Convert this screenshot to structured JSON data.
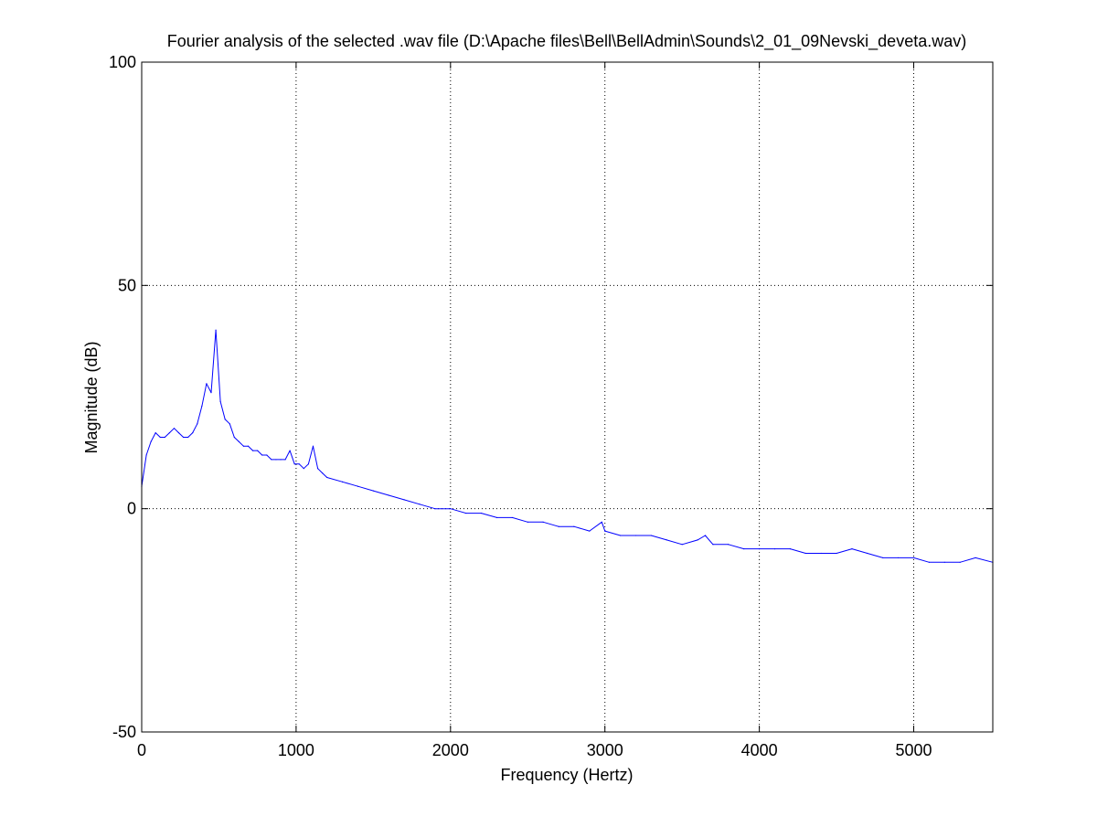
{
  "chart_data": {
    "type": "line",
    "title": "Fourier analysis of the selected .wav file (D:\\Apache files\\Bell\\BellAdmin\\Sounds\\2_01_09Nevski_deveta.wav)",
    "xlabel": "Frequency (Hertz)",
    "ylabel": "Magnitude (dB)",
    "xlim": [
      0,
      5512
    ],
    "ylim": [
      -50,
      100
    ],
    "xticks": [
      0,
      1000,
      2000,
      3000,
      4000,
      5000
    ],
    "xtick_labels": [
      "0",
      "1000",
      "2000",
      "3000",
      "4000",
      "5000"
    ],
    "yticks": [
      -50,
      0,
      50,
      100
    ],
    "ytick_labels": [
      "-50",
      "0",
      "50",
      "100"
    ],
    "grid": true,
    "grid_style": "dotted",
    "line_color": "#0000ff",
    "series": [
      {
        "x": [
          0,
          30,
          60,
          90,
          120,
          150,
          180,
          210,
          240,
          270,
          300,
          330,
          360,
          390,
          420,
          450,
          480,
          510,
          540,
          570,
          600,
          630,
          660,
          690,
          720,
          750,
          780,
          810,
          840,
          870,
          900,
          930,
          960,
          990,
          1020,
          1050,
          1080,
          1110,
          1140,
          1170,
          1200,
          1300,
          1400,
          1500,
          1600,
          1700,
          1800,
          1900,
          2000,
          2100,
          2200,
          2300,
          2400,
          2500,
          2600,
          2700,
          2800,
          2900,
          2980,
          3000,
          3100,
          3200,
          3300,
          3400,
          3500,
          3600,
          3650,
          3700,
          3800,
          3900,
          4000,
          4100,
          4200,
          4300,
          4400,
          4500,
          4600,
          4700,
          4800,
          4900,
          5000,
          5100,
          5200,
          5300,
          5400,
          5512
        ],
        "values": [
          5,
          12,
          15,
          17,
          16,
          16,
          17,
          18,
          17,
          16,
          16,
          17,
          19,
          23,
          28,
          26,
          40,
          24,
          20,
          19,
          16,
          15,
          14,
          14,
          13,
          13,
          12,
          12,
          11,
          11,
          11,
          11,
          13,
          10,
          10,
          9,
          10,
          14,
          9,
          8,
          7,
          6,
          5,
          4,
          3,
          2,
          1,
          0,
          0,
          -1,
          -1,
          -2,
          -2,
          -3,
          -3,
          -4,
          -4,
          -5,
          -3,
          -5,
          -6,
          -6,
          -6,
          -7,
          -8,
          -7,
          -6,
          -8,
          -8,
          -9,
          -9,
          -9,
          -9,
          -10,
          -10,
          -10,
          -9,
          -10,
          -11,
          -11,
          -11,
          -12,
          -12,
          -12,
          -11,
          -12
        ]
      }
    ]
  }
}
